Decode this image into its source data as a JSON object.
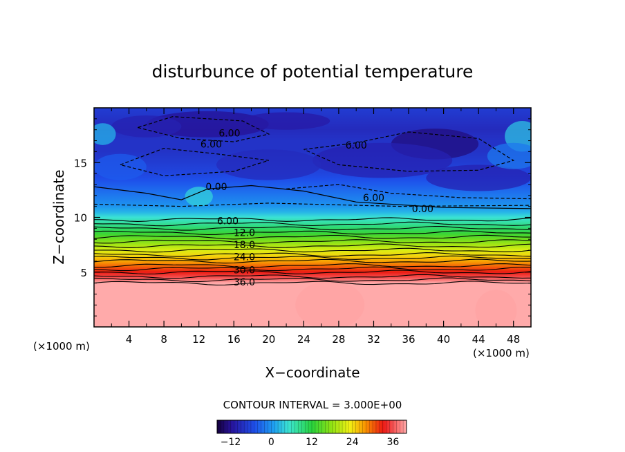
{
  "chart_data": {
    "type": "heatmap",
    "title": "disturbunce of potential temperature",
    "xlabel": "X−coordinate",
    "ylabel": "Z−coordinate",
    "x_unit_left": "(×1000 m)",
    "x_unit_right": "(×1000 m)",
    "xlim": [
      0,
      50
    ],
    "ylim": [
      0,
      20
    ],
    "x_ticks": [
      "4",
      "8",
      "12",
      "16",
      "20",
      "24",
      "28",
      "32",
      "36",
      "40",
      "44",
      "48"
    ],
    "y_ticks": [
      "5",
      "10",
      "15"
    ],
    "contour_interval_text": "CONTOUR INTERVAL = 3.000E+00",
    "contour_labels": [
      {
        "text": "6.00",
        "x": 15.5,
        "z": 17.7
      },
      {
        "text": "6.00",
        "x": 13.4,
        "z": 16.7
      },
      {
        "text": "6.00",
        "x": 30.0,
        "z": 16.6
      },
      {
        "text": "0.00",
        "x": 14.0,
        "z": 12.8
      },
      {
        "text": "6.00",
        "x": 32.0,
        "z": 11.8
      },
      {
        "text": "0.00",
        "x": 37.6,
        "z": 10.8
      },
      {
        "text": "6.00",
        "x": 15.3,
        "z": 9.7
      },
      {
        "text": "12.0",
        "x": 17.2,
        "z": 8.6
      },
      {
        "text": "18.0",
        "x": 17.2,
        "z": 7.5
      },
      {
        "text": "24.0",
        "x": 17.2,
        "z": 6.4
      },
      {
        "text": "30.0",
        "x": 17.2,
        "z": 5.2
      },
      {
        "text": "36.0",
        "x": 17.2,
        "z": 4.1
      }
    ],
    "vertical_profile": {
      "z": [
        0,
        4.0,
        4.5,
        5.0,
        5.5,
        6.0,
        7.0,
        8.0,
        9.0,
        10.0,
        10.5,
        11.0,
        12.0,
        13.0,
        14.0,
        15.0,
        16.0,
        17.0,
        18.0,
        19.0,
        20.0
      ],
      "theta": [
        40,
        40,
        36,
        33,
        30,
        27,
        22,
        16,
        10,
        5,
        2,
        0,
        -2,
        -4,
        -6,
        -7,
        -8,
        -8,
        -9,
        -8,
        -7
      ]
    },
    "colorbar": {
      "min": -16,
      "max": 40,
      "tick_values": [
        -12,
        0,
        12,
        24,
        36
      ],
      "tick_labels": [
        "−12",
        "0",
        "12",
        "24",
        "36"
      ]
    }
  }
}
